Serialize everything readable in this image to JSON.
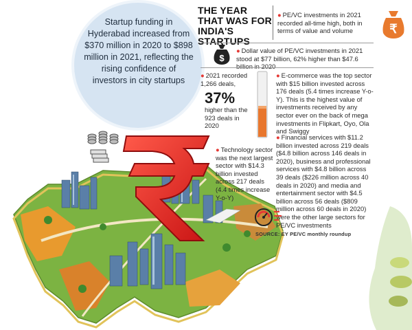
{
  "bubble_text": "Startup funding in Hyderabad increased from $370 million in 2020 to $898 million in 2021, reflecting the rising confidence of investors in city startups",
  "headline": "THE YEAR THAT WAS FOR INDIA'S STARTUPS",
  "facts": {
    "pe_vc": "PE/VC investments in 2021 recorded all-time high, both in terms of value and volume",
    "dollar_value": "Dollar value of PE/VC investments in 2021 stood at $77 billion, 62% higher than $47.6 billion in 2020",
    "deals_2021": "2021 recorded 1,266 deals,",
    "deals_pct": "37%",
    "deals_pct_text": "higher than the 923 deals in 2020",
    "ecommerce": "E-commerce was the top sector with $15 billion invested across 176 deals (5.4 times increase Y-o-Y). This is the highest value of investments received by any sector ever on the back of mega investments in Flipkart, Oyo, Ola and Swiggy",
    "technology": "Technology sector was the next largest sector with $14.3 billion invested across 217 deals (4.4 times increase Y-o-Y)",
    "financial": "Financial services with $11.2 billion invested across 219 deals ($4.8 billion across 146 deals in 2020), business and professional services with $4.8 billion across 39 deals ($226 million across 40 deals in 2020) and media and entertainment sector with $4.5 billion across 56 deals ($809 million across 60 deals in 2020) were the other large sectors for PE/VC investments"
  },
  "source": "SOURCE: EY PE/VC monthly roundup",
  "icons": {
    "bag": "money-bag-icon",
    "dollar_bag": "dollar-bag-icon",
    "coins": "coins-stack-icon",
    "rupee": "rupee-symbol-icon",
    "thermometer": "thermometer-icon",
    "gauge": "speedometer-icon"
  },
  "colors": {
    "accent_red": "#e53935",
    "bubble_blue": "#d6e4f2",
    "thermo_orange": "#e8772e"
  }
}
